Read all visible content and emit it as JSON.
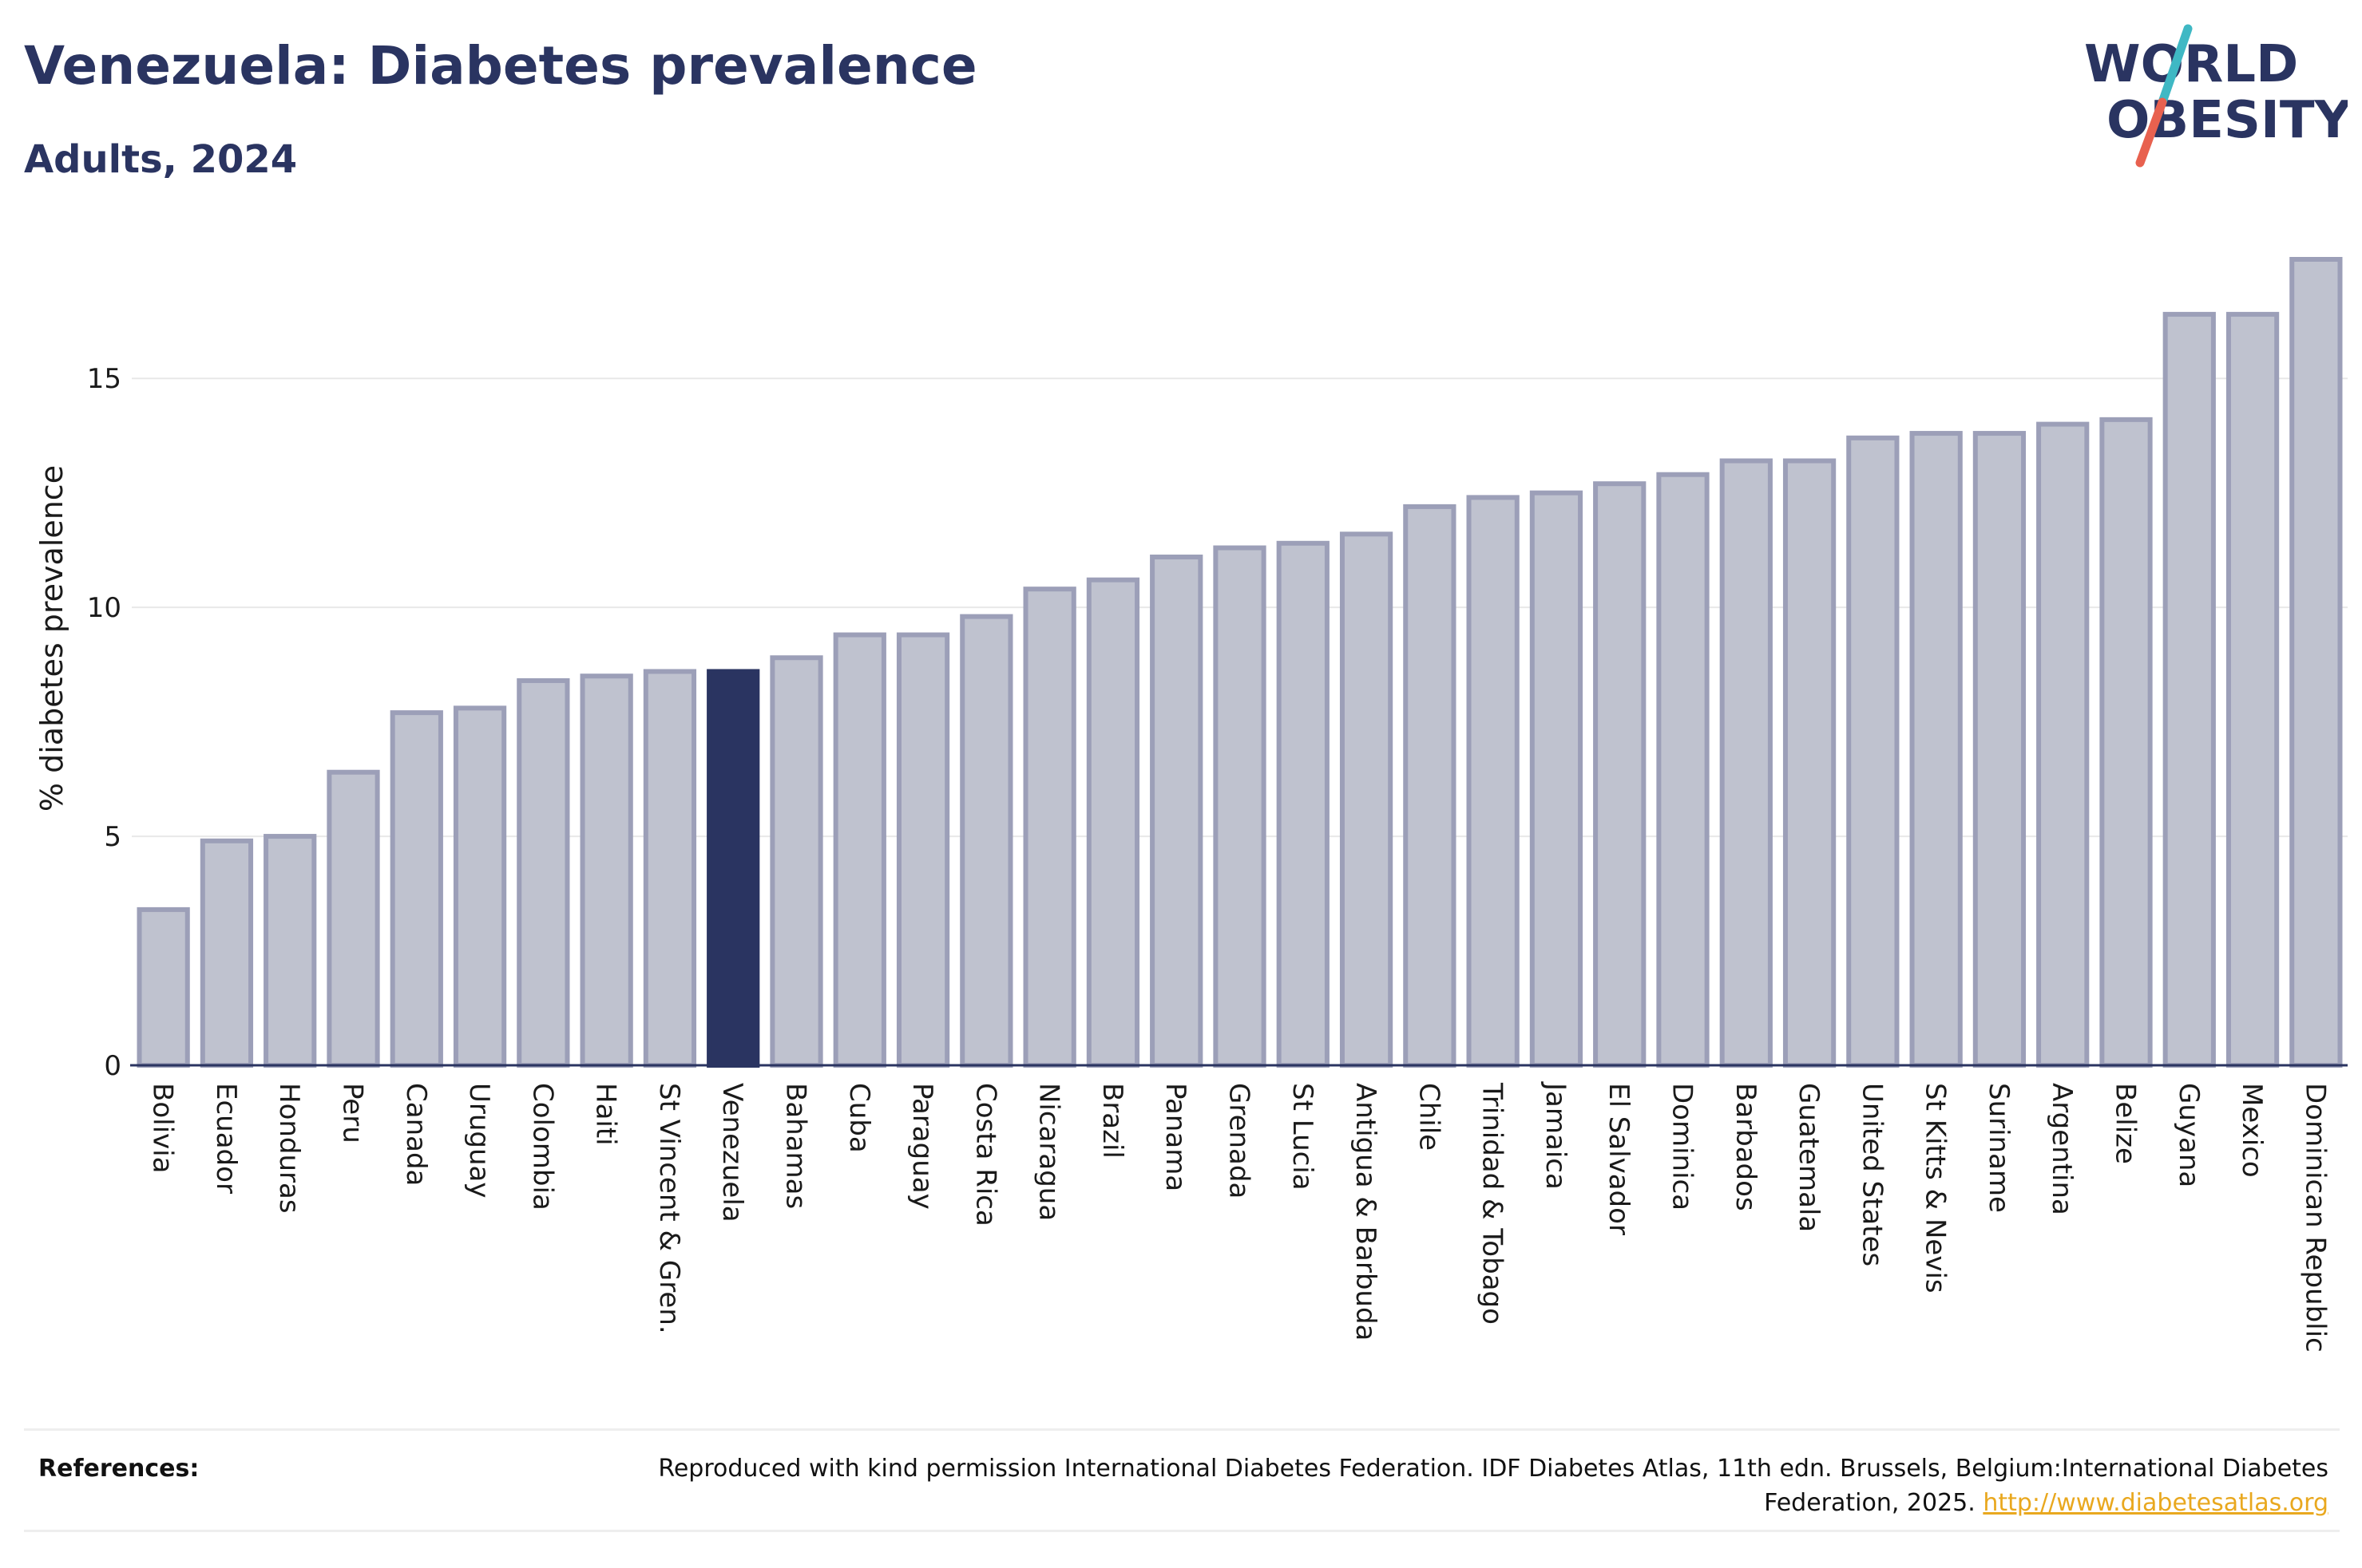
{
  "header": {
    "title": "Venezuela: Diabetes prevalence",
    "subtitle": "Adults, 2024"
  },
  "logo": {
    "line1": "WORLD",
    "line2": "OBESITY",
    "slash_color_top": "#3fb8c4",
    "slash_color_bottom": "#e8614f"
  },
  "colors": {
    "bar_fill": "#bfc2cf",
    "bar_stroke": "#9c9fb8",
    "highlight": "#2a3461",
    "grid": "#e8e8e8",
    "axis": "#2a3461",
    "link": "#e9a81f"
  },
  "chart_data": {
    "type": "bar",
    "ylabel": "% diabetes prevalence",
    "ylim": [
      0,
      17.6
    ],
    "yticks": [
      0,
      5,
      10,
      15
    ],
    "grid": true,
    "highlight": "Venezuela",
    "categories": [
      "Bolivia",
      "Ecuador",
      "Honduras",
      "Peru",
      "Canada",
      "Uruguay",
      "Colombia",
      "Haiti",
      "St Vincent & Gren.",
      "Venezuela",
      "Bahamas",
      "Cuba",
      "Paraguay",
      "Costa Rica",
      "Nicaragua",
      "Brazil",
      "Panama",
      "Grenada",
      "St Lucia",
      "Antigua & Barbuda",
      "Chile",
      "Trinidad & Tobago",
      "Jamaica",
      "El Salvador",
      "Dominica",
      "Barbados",
      "Guatemala",
      "United States",
      "St Kitts & Nevis",
      "Suriname",
      "Argentina",
      "Belize",
      "Guyana",
      "Mexico",
      "Dominican Republic"
    ],
    "values": [
      3.4,
      4.9,
      5.0,
      6.4,
      7.7,
      7.8,
      8.4,
      8.5,
      8.6,
      8.6,
      8.9,
      9.4,
      9.4,
      9.8,
      10.4,
      10.6,
      11.1,
      11.3,
      11.4,
      11.6,
      12.2,
      12.4,
      12.5,
      12.7,
      12.9,
      13.2,
      13.2,
      13.7,
      13.8,
      13.8,
      14.0,
      14.1,
      16.4,
      16.4,
      17.6
    ]
  },
  "references": {
    "label": "References:",
    "text": "Reproduced with kind permission International Diabetes Federation. IDF Diabetes Atlas, 11th edn. Brussels, Belgium:International Diabetes Federation, 2025.",
    "link": "http://www.diabetesatlas.org"
  }
}
